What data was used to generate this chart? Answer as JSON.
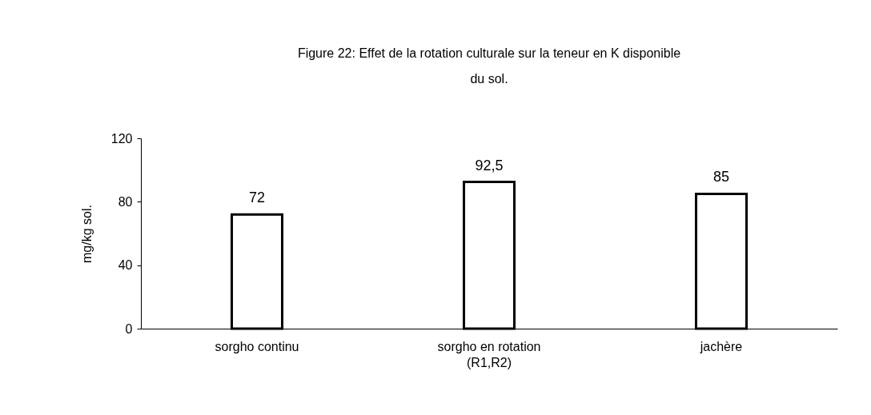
{
  "chart_data": {
    "type": "bar",
    "title": "Figure 22: Effet de la rotation culturale sur la teneur en K disponible du sol.",
    "ylabel": "mg/kg sol.",
    "categories": [
      "sorgho continu",
      "sorgho en rotation (R1,R2)",
      "jachère"
    ],
    "values": [
      72,
      92.5,
      85
    ],
    "value_labels": [
      "72",
      "92,5",
      "85"
    ],
    "color": "#ffffff",
    "ylim": [
      0,
      120
    ],
    "yticks": [
      0,
      40,
      80,
      120
    ],
    "grid": false
  }
}
